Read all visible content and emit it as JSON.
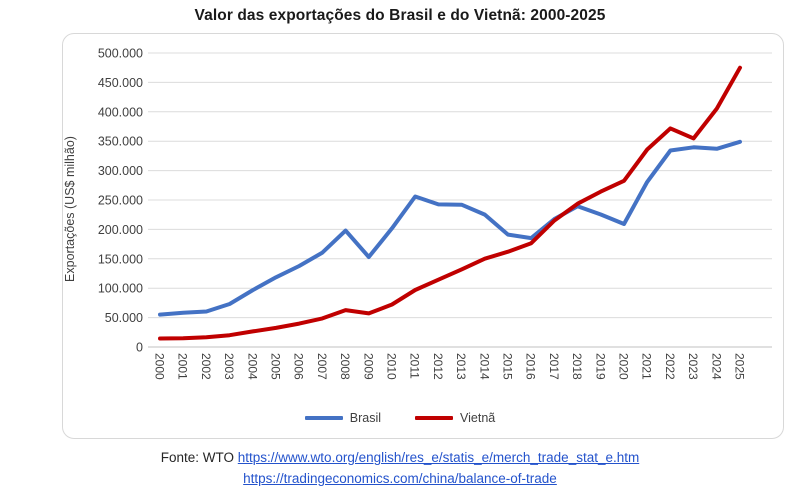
{
  "title": "Valor das exportações do Brasil e do Vietnã: 2000-2025",
  "y_axis": {
    "label": "Exportações (US$ milhão)",
    "ticks": [
      {
        "value": 0,
        "label": "0"
      },
      {
        "value": 50000,
        "label": "50.000"
      },
      {
        "value": 100000,
        "label": "100.000"
      },
      {
        "value": 150000,
        "label": "150.000"
      },
      {
        "value": 200000,
        "label": "200.000"
      },
      {
        "value": 250000,
        "label": "250.000"
      },
      {
        "value": 300000,
        "label": "300.000"
      },
      {
        "value": 350000,
        "label": "350.000"
      },
      {
        "value": 400000,
        "label": "400.000"
      },
      {
        "value": 450000,
        "label": "450.000"
      },
      {
        "value": 500000,
        "label": "500.000"
      }
    ]
  },
  "chart_data": {
    "type": "line",
    "title": "Valor das exportações do Brasil e do Vietnã: 2000-2025",
    "xlabel": "",
    "ylabel": "Exportações (US$ milhão)",
    "ylim": [
      0,
      500000
    ],
    "grid": true,
    "legend_position": "bottom",
    "x": [
      "2000",
      "2001",
      "2002",
      "2003",
      "2004",
      "2005",
      "2006",
      "2007",
      "2008",
      "2009",
      "2010",
      "2011",
      "2012",
      "2013",
      "2014",
      "2015",
      "2016",
      "2017",
      "2018",
      "2019",
      "2020",
      "2021",
      "2022",
      "2023",
      "2024",
      "2025"
    ],
    "series": [
      {
        "name": "Brasil",
        "color": "#4472C4",
        "values": [
          55100,
          58300,
          60400,
          73200,
          96700,
          118500,
          137800,
          160600,
          197900,
          153000,
          201900,
          256000,
          242600,
          242000,
          225100,
          191100,
          185200,
          217700,
          239300,
          225400,
          209200,
          280800,
          334100,
          339700,
          337000,
          349000
        ]
      },
      {
        "name": "Vietnã",
        "color": "#C00000",
        "values": [
          14500,
          15000,
          16700,
          20100,
          26500,
          32400,
          39800,
          48600,
          62700,
          57100,
          72200,
          96900,
          114500,
          132000,
          150200,
          162000,
          176600,
          215100,
          243700,
          264300,
          282700,
          335900,
          371700,
          354700,
          405500,
          475000
        ]
      }
    ]
  },
  "colors": {
    "gridline": "#dcdcdc",
    "axis_line": "#c2c2c2",
    "tick_text": "#404040",
    "link": "#2453cc"
  },
  "footer": {
    "source_prefix": "Fonte: WTO ",
    "link1": "https://www.wto.org/english/res_e/statis_e/merch_trade_stat_e.htm",
    "link2": "https://tradingeconomics.com/china/balance-of-trade"
  }
}
